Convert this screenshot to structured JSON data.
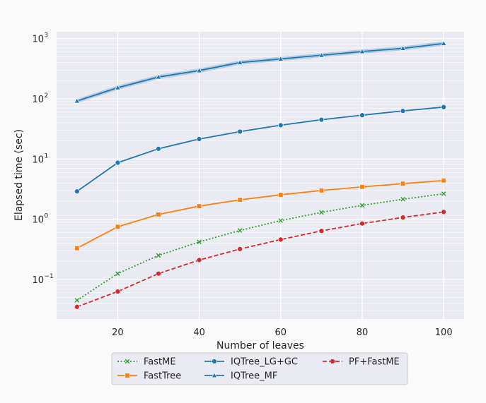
{
  "chart_data": {
    "type": "line",
    "xlabel": "Number of leaves",
    "ylabel": "Elapsed time (sec)",
    "x": [
      10,
      20,
      30,
      40,
      50,
      60,
      70,
      80,
      90,
      100
    ],
    "xlim": [
      5,
      105
    ],
    "xticks": [
      20,
      40,
      60,
      80,
      100
    ],
    "yscale": "log",
    "ylim": [
      0.022,
      1300
    ],
    "yticks": [
      {
        "value": 0.1,
        "base": "10",
        "exp": "−1"
      },
      {
        "value": 1,
        "base": "10",
        "exp": "0"
      },
      {
        "value": 10,
        "base": "10",
        "exp": "1"
      },
      {
        "value": 100,
        "base": "10",
        "exp": "2"
      },
      {
        "value": 1000,
        "base": "10",
        "exp": "3"
      }
    ],
    "grid": true,
    "legend": "bottom-center",
    "series": [
      {
        "name": "FastME",
        "color": "#2ca02c",
        "marker": "x",
        "linestyle": "dotted",
        "values": [
          0.045,
          0.125,
          0.25,
          0.42,
          0.65,
          0.95,
          1.3,
          1.7,
          2.15,
          2.65
        ]
      },
      {
        "name": "FastTree",
        "color": "#ff7f0e",
        "marker": "square",
        "linestyle": "solid",
        "values": [
          0.33,
          0.75,
          1.2,
          1.65,
          2.1,
          2.55,
          3.0,
          3.45,
          3.9,
          4.4
        ]
      },
      {
        "name": "IQTree_LG+GC",
        "color": "#1f77b4",
        "marker": "circle",
        "linestyle": "solid",
        "values": [
          2.9,
          8.7,
          14.8,
          21.5,
          28.5,
          36.5,
          45.0,
          53.5,
          63.0,
          73.0
        ]
      },
      {
        "name": "IQTree_MF",
        "color": "#1f77b4",
        "marker": "triangle",
        "linestyle": "solid",
        "values": [
          92,
          153,
          230,
          295,
          400,
          460,
          530,
          610,
          690,
          830
        ]
      },
      {
        "name": "PF+FastME",
        "color": "#d62728",
        "marker": "circle",
        "linestyle": "dashed",
        "values": [
          0.035,
          0.063,
          0.125,
          0.21,
          0.32,
          0.46,
          0.64,
          0.85,
          1.07,
          1.32
        ]
      }
    ]
  }
}
